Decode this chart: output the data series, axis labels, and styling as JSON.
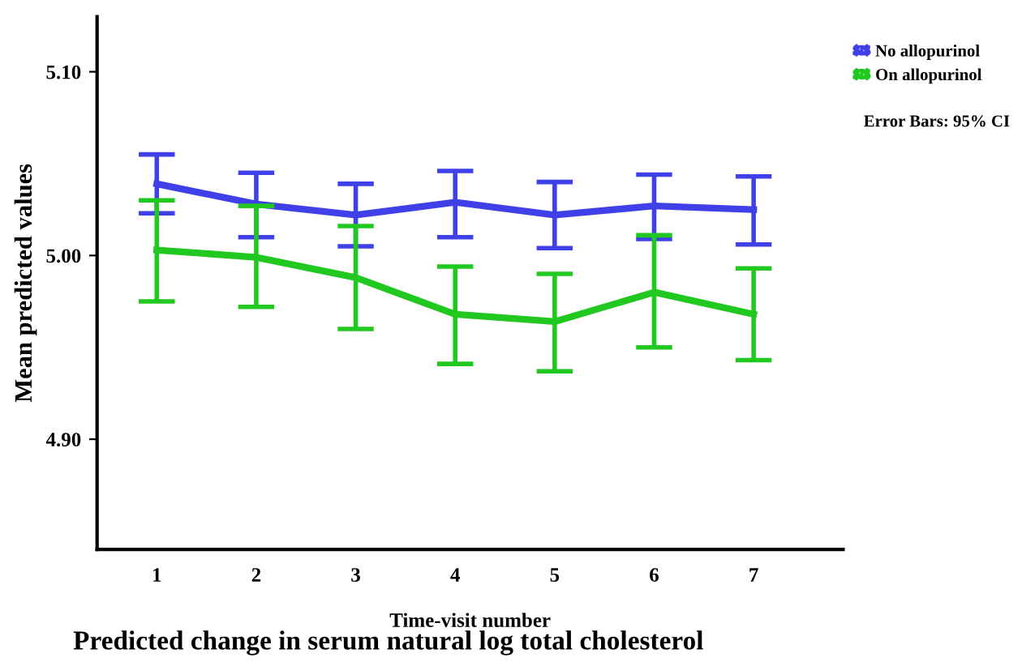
{
  "chart_data": {
    "type": "line",
    "title": "Predicted change in serum natural log total cholesterol",
    "xlabel": "Time-visit number",
    "ylabel": "Mean predicted values",
    "categories": [
      "1",
      "2",
      "3",
      "4",
      "5",
      "6",
      "7"
    ],
    "series": [
      {
        "name": "No allopurinol",
        "color": "#4040e8",
        "values": [
          5.039,
          5.028,
          5.022,
          5.029,
          5.022,
          5.027,
          5.025
        ],
        "errors": [
          [
            5.023,
            5.055
          ],
          [
            5.01,
            5.045
          ],
          [
            5.005,
            5.039
          ],
          [
            5.01,
            5.046
          ],
          [
            5.004,
            5.04
          ],
          [
            5.009,
            5.044
          ],
          [
            5.006,
            5.043
          ]
        ]
      },
      {
        "name": "On allopurinol",
        "color": "#20c820",
        "values": [
          5.003,
          4.999,
          4.988,
          4.968,
          4.964,
          4.98,
          4.968
        ],
        "errors": [
          [
            4.975,
            5.03
          ],
          [
            4.972,
            5.027
          ],
          [
            4.96,
            5.016
          ],
          [
            4.941,
            4.994
          ],
          [
            4.937,
            4.99
          ],
          [
            4.95,
            5.011
          ],
          [
            4.943,
            4.993
          ]
        ]
      }
    ],
    "ylim": [
      4.84,
      5.13
    ],
    "yticks": [
      {
        "value": 4.9,
        "label": "4.90"
      },
      {
        "value": 5.0,
        "label": "5.00"
      },
      {
        "value": 5.1,
        "label": "5.10"
      }
    ],
    "annotations": [
      "Error Bars: 95% CI"
    ],
    "legend": "top right",
    "grid": false,
    "marker": "none",
    "line_style": "solid"
  }
}
